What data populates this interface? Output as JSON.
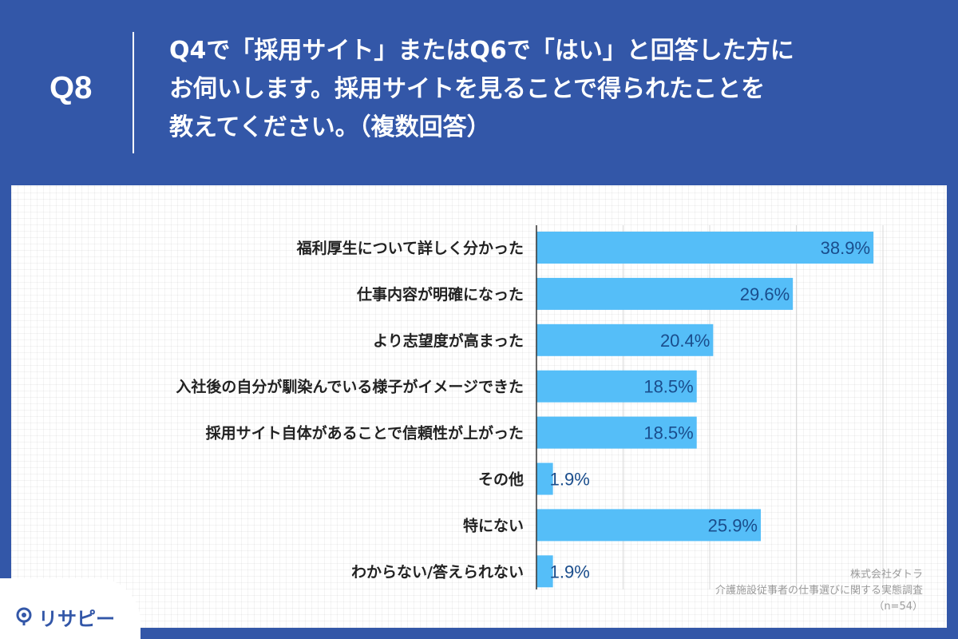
{
  "header": {
    "q_label": "Q8",
    "question_lines": [
      "Q4で「採用サイト」またはQ6で「はい」と回答した方に",
      "お伺いします。採用サイトを見ることで得られたことを",
      "教えてください。（複数回答）"
    ]
  },
  "source": {
    "company": "株式会社ダトラ",
    "survey": "介護施設従事者の仕事選びに関する実態調査",
    "sample": "（n=54）"
  },
  "logo": {
    "text": "リサピー",
    "icon": "location-pin-icon"
  },
  "colors": {
    "background": "#3357a8",
    "bar": "#55bef8",
    "value_label": "#1a4d8c",
    "category_label": "#222222"
  },
  "chart_data": {
    "type": "bar",
    "orientation": "horizontal",
    "categories": [
      "福利厚生について詳しく分かった",
      "仕事内容が明確になった",
      "より志望度が高まった",
      "入社後の自分が馴染んでいる様子がイメージできた",
      "採用サイト自体があることで信頼性が上がった",
      "その他",
      "特にない",
      "わからない/答えられない"
    ],
    "values": [
      38.9,
      29.6,
      20.4,
      18.5,
      18.5,
      1.9,
      25.9,
      1.9
    ],
    "value_labels": [
      "38.9%",
      "29.6%",
      "20.4%",
      "18.5%",
      "18.5%",
      "1.9%",
      "25.9%",
      "1.9%"
    ],
    "unit": "%",
    "xlim": [
      0,
      40
    ],
    "grid": true,
    "title": "",
    "xlabel": "",
    "ylabel": ""
  }
}
